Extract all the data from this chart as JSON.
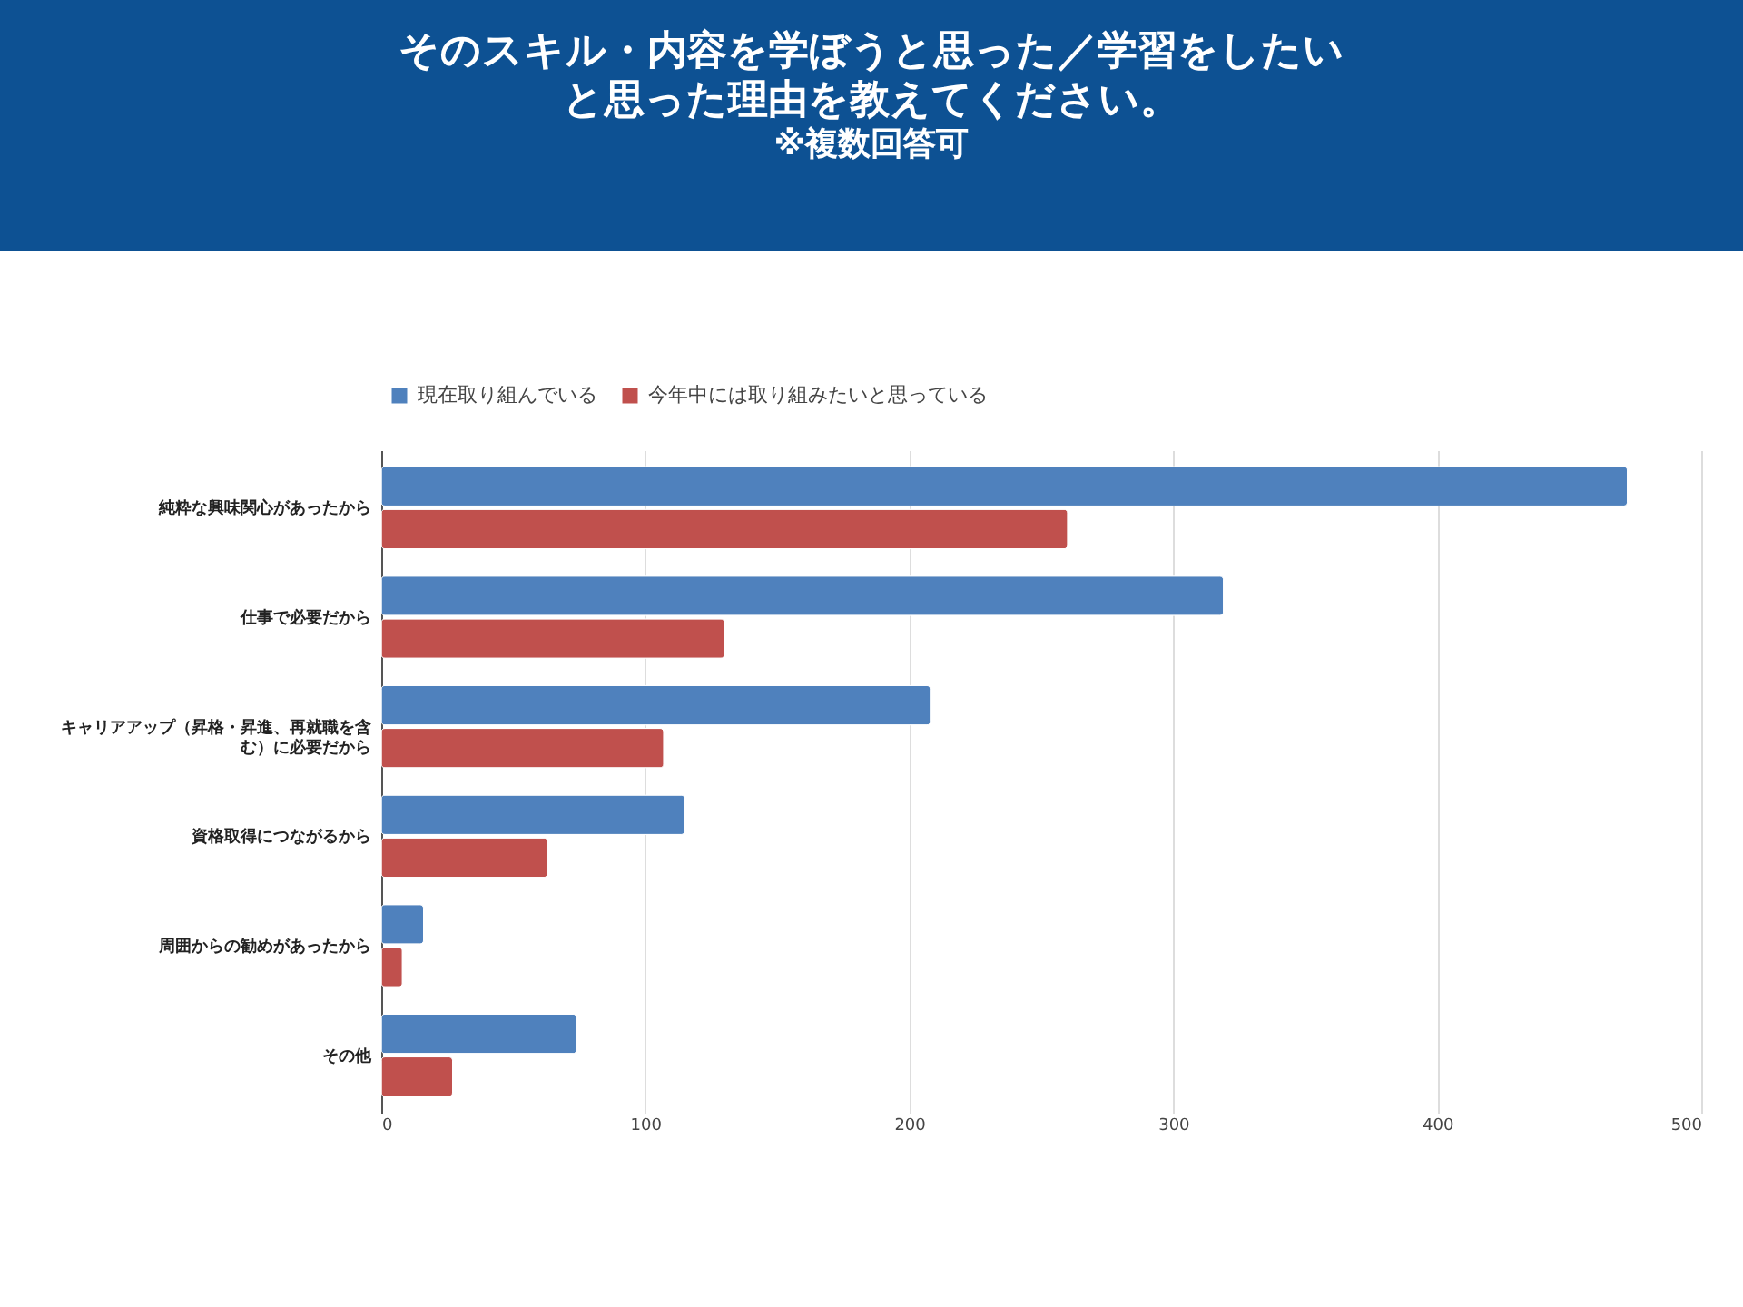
{
  "chart_data": {
    "type": "bar",
    "orientation": "horizontal",
    "title": "そのスキル・内容を学ぼうと思った／学習をしたいと思った理由を教えてください。",
    "subtitle": "※複数回答可",
    "categories": [
      "純粋な興味関心があったから",
      "仕事で必要だから",
      "キャリアアップ（昇格・昇進、再就職を含む）に必要だから",
      "資格取得につながるから",
      "周囲からの勧めがあったから",
      "その他"
    ],
    "series": [
      {
        "name": "現在取り組んでいる",
        "color": "#4f81bd",
        "values": [
          472,
          319,
          208,
          115,
          16,
          74
        ]
      },
      {
        "name": "今年中には取り組みたいと思っている",
        "color": "#c0504d",
        "values": [
          260,
          130,
          107,
          63,
          8,
          27
        ]
      }
    ],
    "xlim": [
      0,
      500
    ],
    "xticks": [
      0,
      100,
      200,
      300,
      400,
      500
    ],
    "grid": "x",
    "legend": "top"
  }
}
